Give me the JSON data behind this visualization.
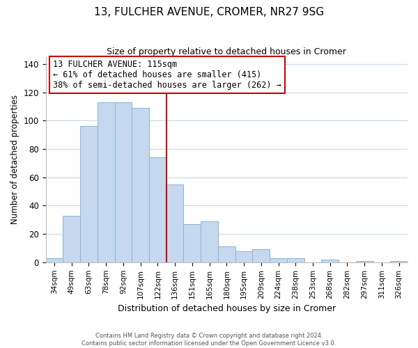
{
  "title": "13, FULCHER AVENUE, CROMER, NR27 9SG",
  "subtitle": "Size of property relative to detached houses in Cromer",
  "xlabel": "Distribution of detached houses by size in Cromer",
  "ylabel": "Number of detached properties",
  "categories": [
    "34sqm",
    "49sqm",
    "63sqm",
    "78sqm",
    "92sqm",
    "107sqm",
    "122sqm",
    "136sqm",
    "151sqm",
    "165sqm",
    "180sqm",
    "195sqm",
    "209sqm",
    "224sqm",
    "238sqm",
    "253sqm",
    "268sqm",
    "282sqm",
    "297sqm",
    "311sqm",
    "326sqm"
  ],
  "values": [
    3,
    33,
    96,
    113,
    113,
    109,
    74,
    55,
    27,
    29,
    11,
    8,
    9,
    3,
    3,
    0,
    2,
    0,
    1,
    0,
    1
  ],
  "bar_color": "#c5d8ed",
  "bar_edge_color": "#8ab4d4",
  "reference_line_color": "#cc0000",
  "annotation_text": "13 FULCHER AVENUE: 115sqm\n← 61% of detached houses are smaller (415)\n38% of semi-detached houses are larger (262) →",
  "annotation_box_color": "#ffffff",
  "annotation_box_edge_color": "#cc0000",
  "ylim": [
    0,
    145
  ],
  "yticks": [
    0,
    20,
    40,
    60,
    80,
    100,
    120,
    140
  ],
  "footer_line1": "Contains HM Land Registry data © Crown copyright and database right 2024.",
  "footer_line2": "Contains public sector information licensed under the Open Government Licence v3.0.",
  "background_color": "#ffffff",
  "grid_color": "#c8d8ea"
}
